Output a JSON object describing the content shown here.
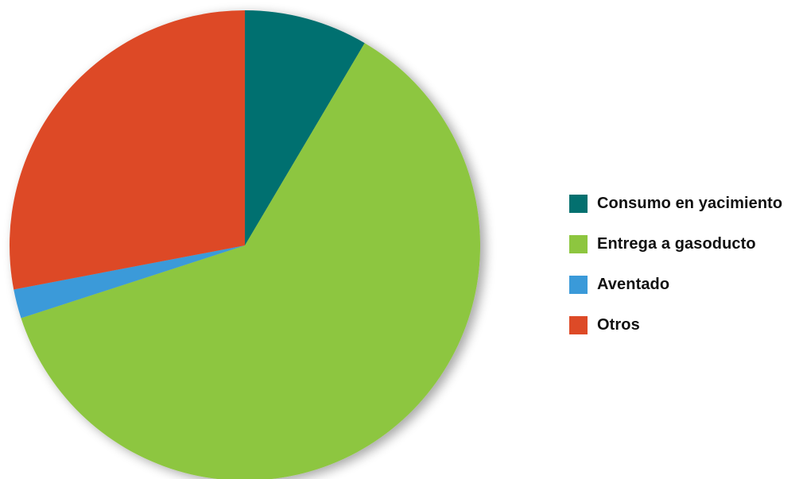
{
  "chart_data": {
    "type": "pie",
    "title": "",
    "slices": [
      {
        "label": "Consumo en yacimiento",
        "value": 8.5,
        "color": "#03706F"
      },
      {
        "label": "Entrega a gasoducto",
        "value": 61.5,
        "color": "#8DC63F"
      },
      {
        "label": "Aventado",
        "value": 2.0,
        "color": "#3A9AD9"
      },
      {
        "label": "Otros",
        "value": 28.0,
        "color": "#DD4A27"
      }
    ],
    "legend_position": "right"
  }
}
